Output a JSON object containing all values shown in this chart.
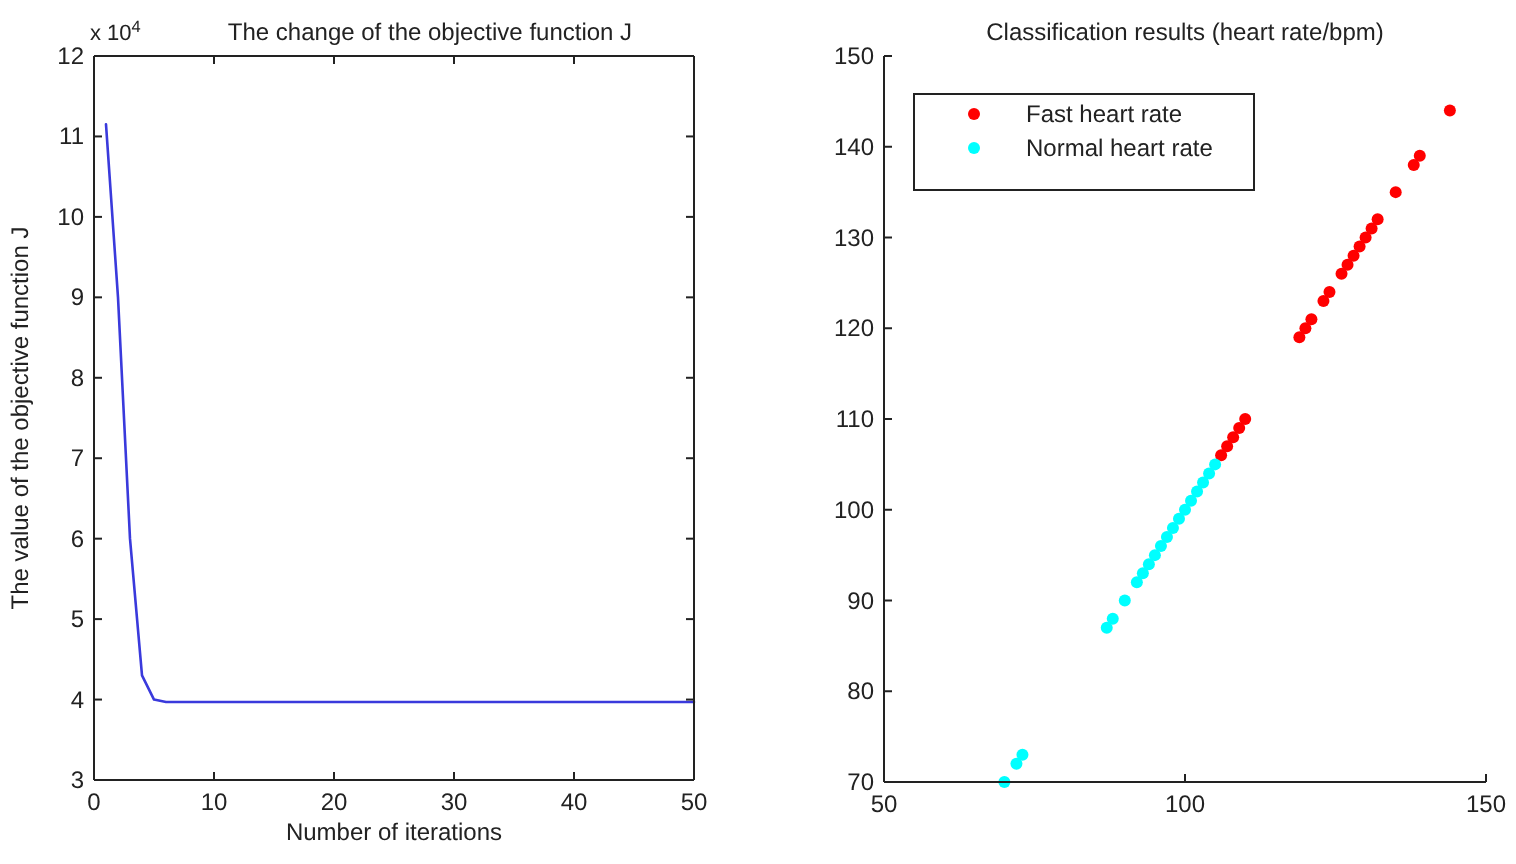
{
  "chart_data": [
    {
      "type": "line",
      "title": "The change of the objective function J",
      "xlabel": "Number of iterations",
      "ylabel": "The value of the objective function J",
      "annotations": [
        "x 10$^{4}$"
      ],
      "x": [
        1,
        2,
        3,
        4,
        5,
        6,
        50
      ],
      "series": [
        {
          "color": "#3a3adc",
          "values": [
            11.15,
            9.0,
            6.0,
            4.3,
            4.0,
            3.97,
            3.97
          ]
        }
      ],
      "xlim": [
        0,
        50
      ],
      "xticks": [
        0,
        10,
        20,
        30,
        40,
        50
      ],
      "ylim": [
        3,
        12
      ],
      "yticks": [
        3,
        4,
        5,
        6,
        7,
        8,
        9,
        10,
        11,
        12
      ],
      "grid": false,
      "legend": false,
      "marker": "none",
      "line_style": "solid"
    },
    {
      "type": "scatter",
      "title": "Classification results (heart rate/bpm)",
      "legend": "top left",
      "marker": "circle",
      "series": [
        {
          "name": "Fast heart rate",
          "color": "#ff0000",
          "x": [
            106,
            107,
            108,
            109,
            110,
            119,
            120,
            121,
            123,
            124,
            126,
            127,
            128,
            129,
            130,
            131,
            132,
            135,
            138,
            139,
            144
          ],
          "values": [
            106,
            107,
            108,
            109,
            110,
            119,
            120,
            121,
            123,
            124,
            126,
            127,
            128,
            129,
            130,
            131,
            132,
            135,
            138,
            139,
            144
          ]
        },
        {
          "name": "Normal heart rate",
          "color": "#00ffff",
          "x": [
            70,
            72,
            73,
            87,
            88,
            90,
            92,
            93,
            94,
            95,
            96,
            97,
            98,
            99,
            100,
            101,
            102,
            103,
            104,
            105
          ],
          "values": [
            70,
            72,
            73,
            87,
            88,
            90,
            92,
            93,
            94,
            95,
            96,
            97,
            98,
            99,
            100,
            101,
            102,
            103,
            104,
            105
          ]
        }
      ],
      "xlim": [
        50,
        150
      ],
      "xticks": [
        50,
        100,
        150
      ],
      "ylim": [
        70,
        150
      ],
      "yticks": [
        70,
        80,
        90,
        100,
        110,
        120,
        130,
        140,
        150
      ],
      "grid": false
    }
  ]
}
